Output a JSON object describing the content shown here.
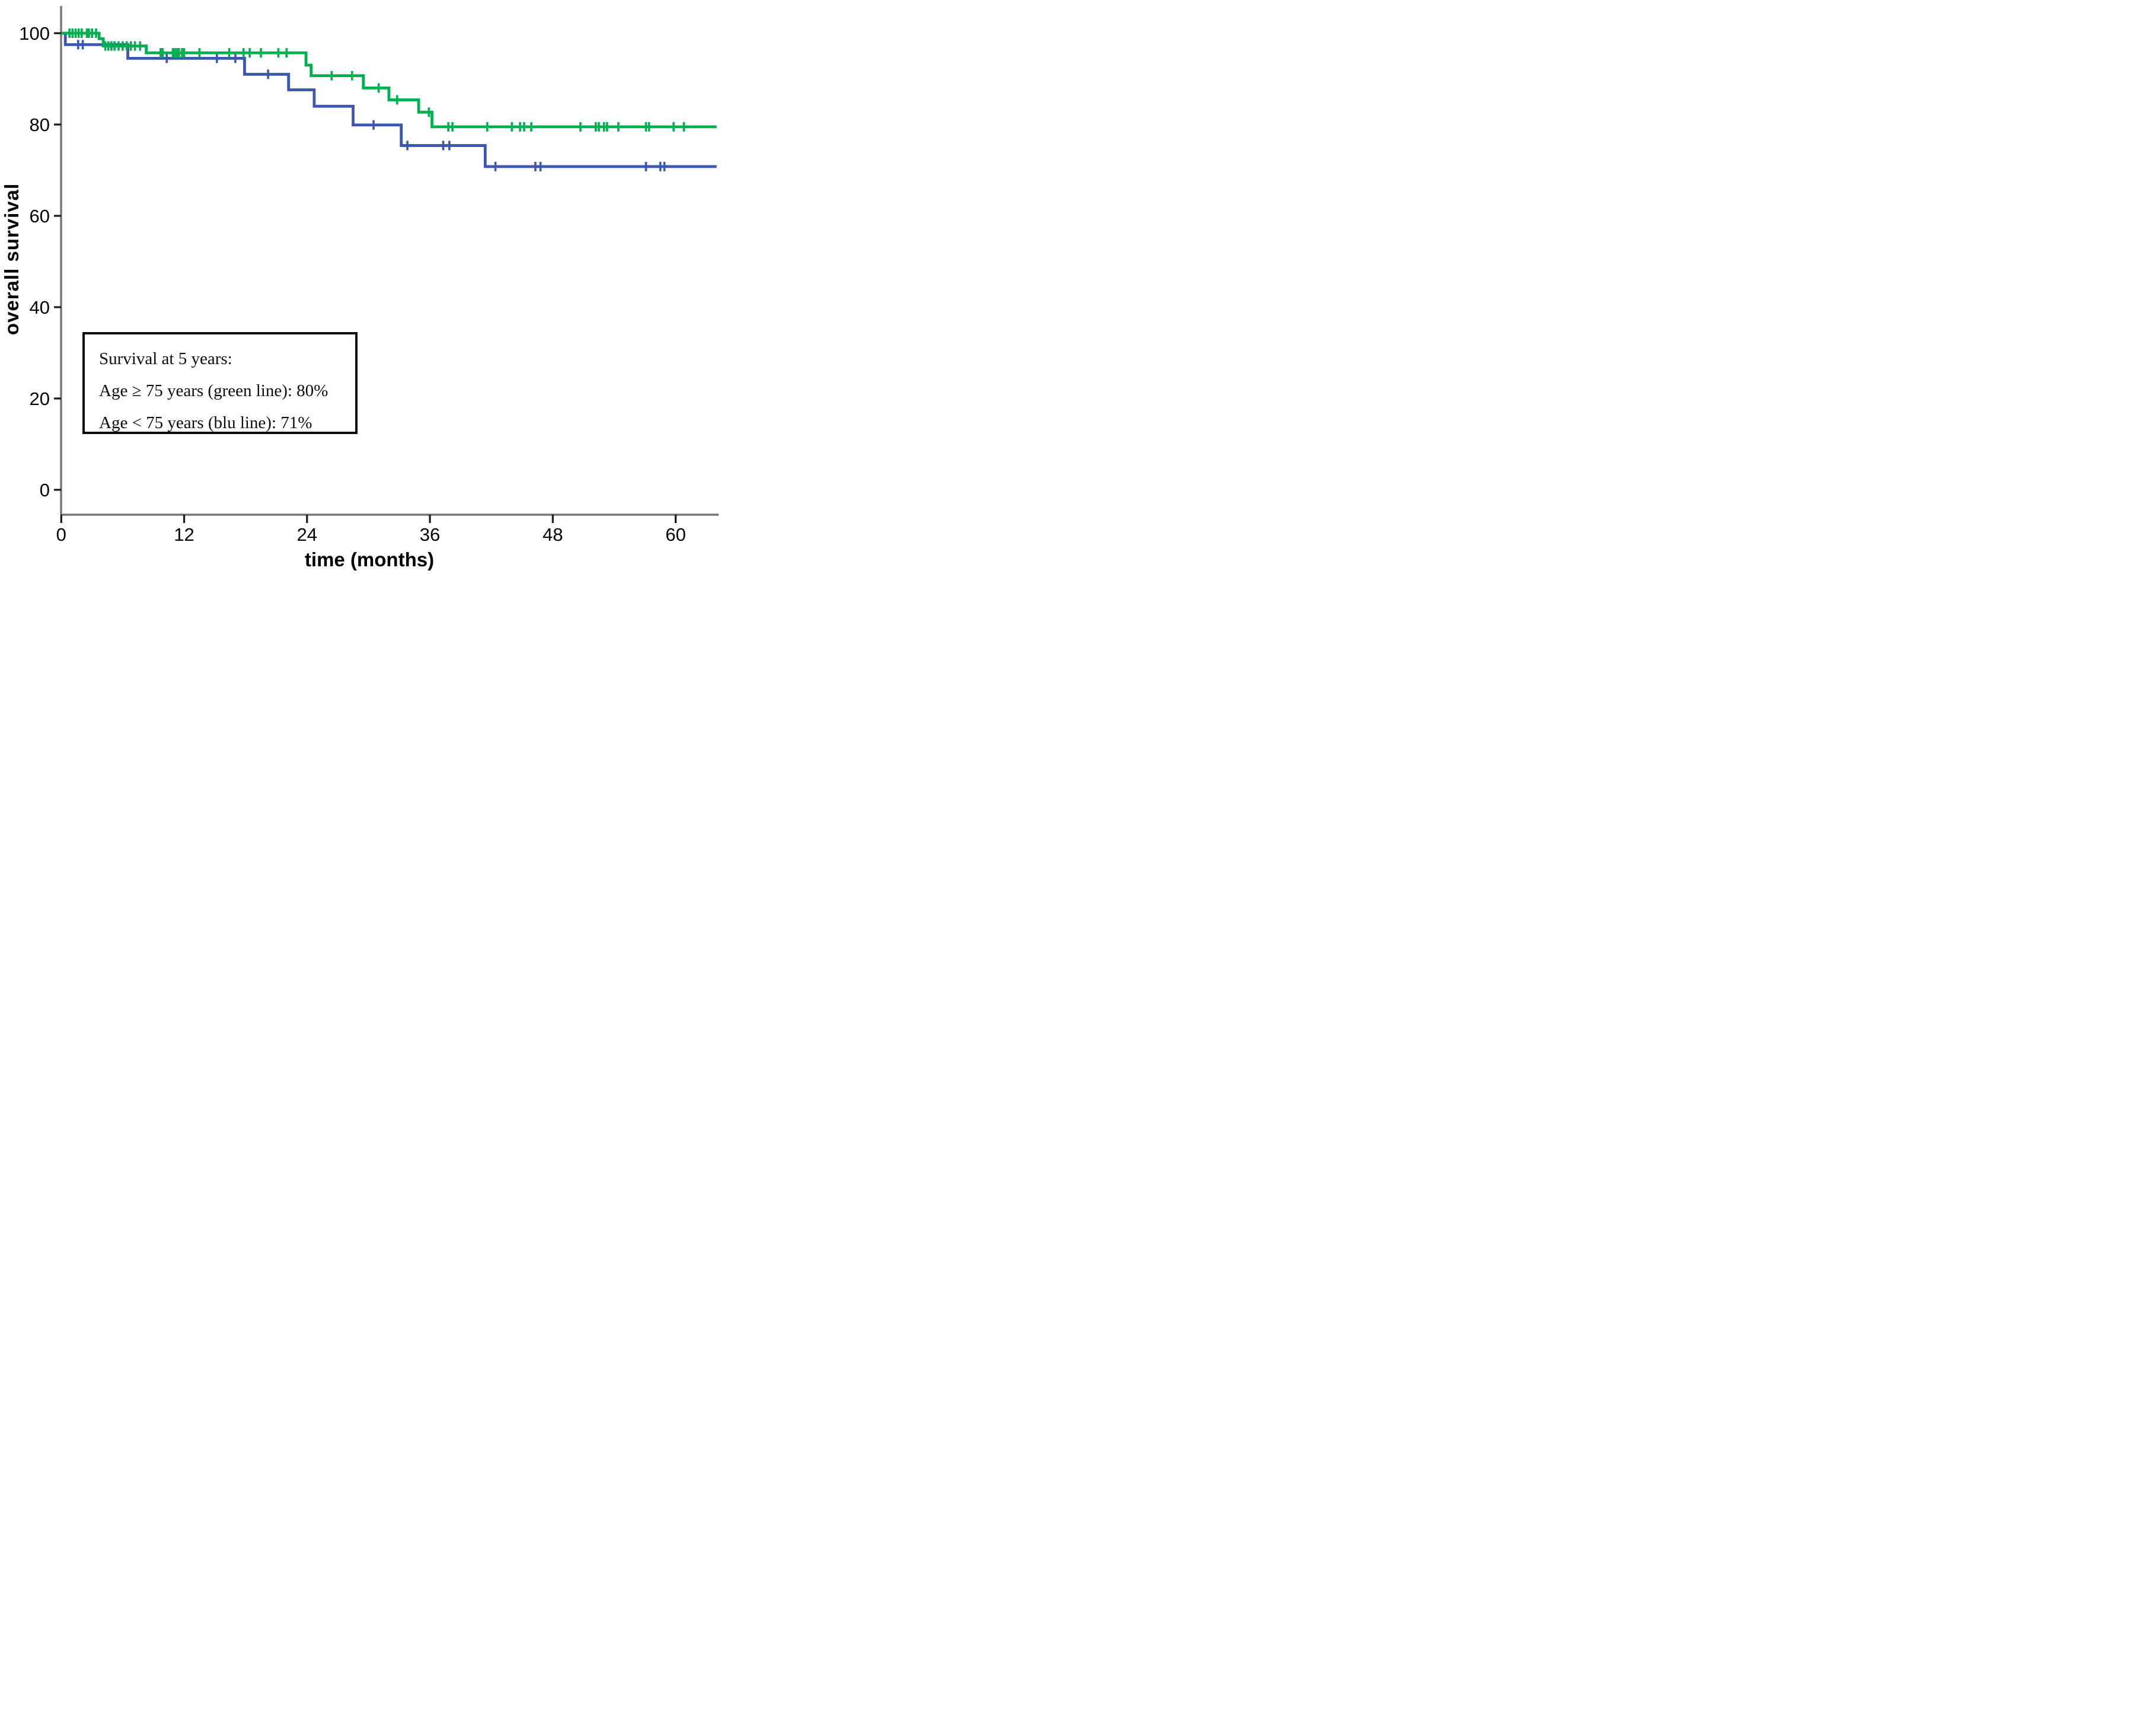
{
  "axes": {
    "y_title": "overall survival",
    "x_title": "time (months)",
    "y_ticks": [
      {
        "value": 100,
        "label": "100"
      },
      {
        "value": 80,
        "label": "80"
      },
      {
        "value": 60,
        "label": "60"
      },
      {
        "value": 40,
        "label": "40"
      },
      {
        "value": 20,
        "label": "20"
      },
      {
        "value": 0,
        "label": "0"
      }
    ],
    "x_ticks": [
      {
        "value": 0,
        "label": "0"
      },
      {
        "value": 12,
        "label": "12"
      },
      {
        "value": 24,
        "label": "24"
      },
      {
        "value": 36,
        "label": "36"
      },
      {
        "value": 48,
        "label": "48"
      },
      {
        "value": 60,
        "label": "60"
      }
    ]
  },
  "annotation": {
    "line1": "Survival at 5 years:",
    "line2": "Age ≥ 75 years (green line): 80%",
    "line3": "Age < 75 years (blu line): 71%"
  },
  "colors": {
    "green_line": "#00b050",
    "blue_line": "#3b57b0",
    "axis_line": "#757575",
    "tick_mark": "#1a1a1a",
    "label_text": "#000000"
  },
  "chart_data": {
    "type": "line",
    "subtype": "kaplan-meier-step",
    "title": "",
    "xlabel": "time (months)",
    "ylabel": "overall survival",
    "xlim": [
      0,
      64
    ],
    "ylim": [
      0,
      100
    ],
    "x_tick_values": [
      0,
      12,
      24,
      36,
      48,
      60
    ],
    "y_tick_values": [
      0,
      20,
      40,
      60,
      80,
      100
    ],
    "grid": false,
    "legend_position": "none (identified in annotation box)",
    "annotation_text": [
      "Survival at 5 years:",
      "Age ≥ 75 years (green line): 80%",
      "Age < 75 years (blu line): 71%"
    ],
    "series": [
      {
        "name": "Age < 75 years (blu line)",
        "color_key": "blue_line",
        "survival_at_5_years": "71%",
        "steps": [
          [
            0,
            100
          ],
          [
            0.4,
            97.5
          ],
          [
            6.5,
            94.5
          ],
          [
            17.9,
            91.0
          ],
          [
            22.2,
            87.6
          ],
          [
            24.7,
            84.0
          ],
          [
            28.5,
            79.9
          ],
          [
            33.2,
            75.4
          ],
          [
            41.4,
            70.8
          ]
        ],
        "end_t": 64,
        "censor_marks": [
          [
            1.65,
            97.5
          ],
          [
            2.1,
            97.5
          ],
          [
            10.3,
            94.5
          ],
          [
            15.2,
            94.5
          ],
          [
            17.0,
            94.5
          ],
          [
            20.2,
            91.0
          ],
          [
            30.5,
            79.9
          ],
          [
            33.8,
            75.4
          ],
          [
            37.3,
            75.4
          ],
          [
            37.9,
            75.4
          ],
          [
            42.4,
            70.8
          ],
          [
            46.3,
            70.8
          ],
          [
            46.8,
            70.8
          ],
          [
            57.1,
            70.8
          ],
          [
            58.5,
            70.8
          ],
          [
            58.9,
            70.8
          ]
        ]
      },
      {
        "name": "Age ≥ 75 years (green line)",
        "color_key": "green_line",
        "survival_at_5_years": "80%",
        "steps": [
          [
            0,
            100
          ],
          [
            3.7,
            98.8
          ],
          [
            4.1,
            97.2
          ],
          [
            8.3,
            95.7
          ],
          [
            23.9,
            93.0
          ],
          [
            24.4,
            90.7
          ],
          [
            29.5,
            88.0
          ],
          [
            32.0,
            85.4
          ],
          [
            34.9,
            82.7
          ],
          [
            36.2,
            79.5
          ]
        ],
        "end_t": 64,
        "censor_marks": [
          [
            0.8,
            100
          ],
          [
            1.1,
            100
          ],
          [
            1.4,
            100
          ],
          [
            1.7,
            100
          ],
          [
            2.0,
            100
          ],
          [
            2.5,
            100
          ],
          [
            2.7,
            100
          ],
          [
            3.0,
            100
          ],
          [
            3.4,
            100
          ],
          [
            4.3,
            97.2
          ],
          [
            4.6,
            97.2
          ],
          [
            4.9,
            97.2
          ],
          [
            5.2,
            97.2
          ],
          [
            5.6,
            97.2
          ],
          [
            6.0,
            97.2
          ],
          [
            6.4,
            97.2
          ],
          [
            6.8,
            97.2
          ],
          [
            7.2,
            97.2
          ],
          [
            7.7,
            97.2
          ],
          [
            9.7,
            95.7
          ],
          [
            9.9,
            95.7
          ],
          [
            10.9,
            95.7
          ],
          [
            11.1,
            95.7
          ],
          [
            11.3,
            95.7
          ],
          [
            11.5,
            95.7
          ],
          [
            11.8,
            95.7
          ],
          [
            12.0,
            95.7
          ],
          [
            13.5,
            95.7
          ],
          [
            16.4,
            95.7
          ],
          [
            17.8,
            95.7
          ],
          [
            18.4,
            95.7
          ],
          [
            19.5,
            95.7
          ],
          [
            21.2,
            95.7
          ],
          [
            22.0,
            95.7
          ],
          [
            26.4,
            90.7
          ],
          [
            28.4,
            90.7
          ],
          [
            31.0,
            88.0
          ],
          [
            32.8,
            85.4
          ],
          [
            35.9,
            82.7
          ],
          [
            37.8,
            79.5
          ],
          [
            38.2,
            79.5
          ],
          [
            41.6,
            79.5
          ],
          [
            44.0,
            79.5
          ],
          [
            44.8,
            79.5
          ],
          [
            45.2,
            79.5
          ],
          [
            45.9,
            79.5
          ],
          [
            50.7,
            79.5
          ],
          [
            52.2,
            79.5
          ],
          [
            52.5,
            79.5
          ],
          [
            53.0,
            79.5
          ],
          [
            53.3,
            79.5
          ],
          [
            54.4,
            79.5
          ],
          [
            57.1,
            79.5
          ],
          [
            57.4,
            79.5
          ],
          [
            59.8,
            79.5
          ],
          [
            60.8,
            79.5
          ]
        ]
      }
    ]
  }
}
